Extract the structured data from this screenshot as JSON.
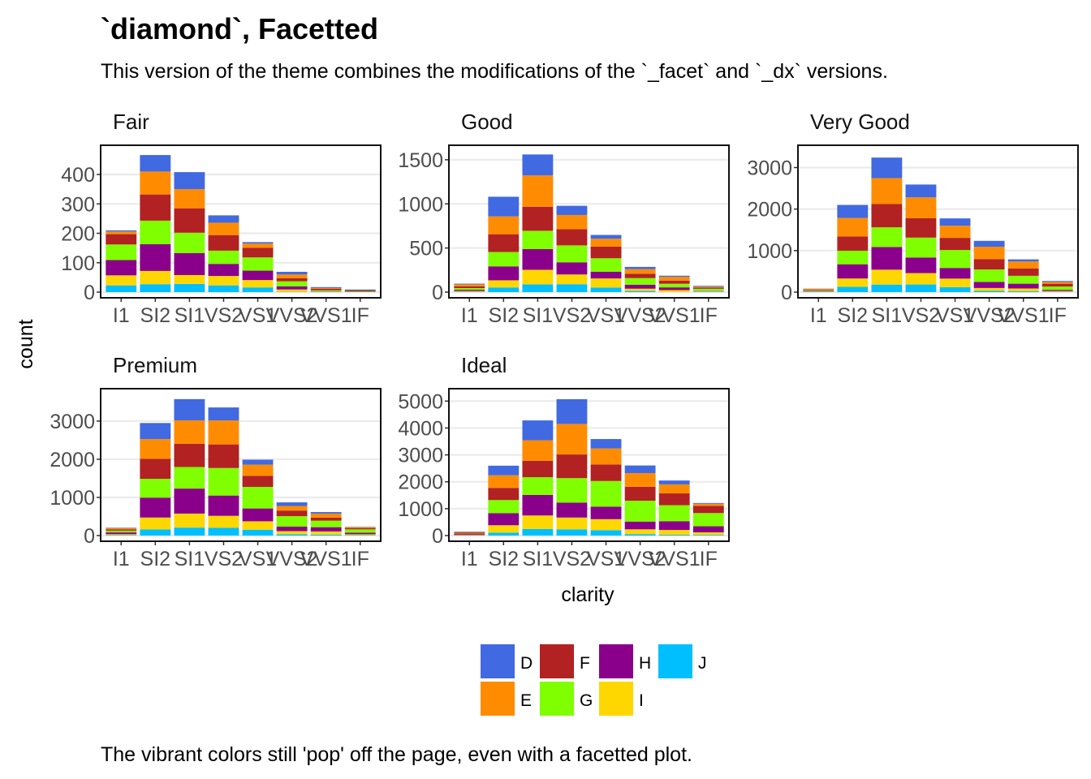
{
  "title": "`diamond`, Facetted",
  "subtitle": "This version of the theme combines the modifications of the `_facet` and `_dx` versions.",
  "caption": "The vibrant colors still 'pop' off the page, even with a facetted plot.",
  "colors": {
    "D": "#4169E1",
    "E": "#FF8C00",
    "F": "#B22222",
    "G": "#7FFF00",
    "H": "#8B008B",
    "I": "#FFD700",
    "J": "#00BFFF"
  },
  "chart_data": {
    "type": "bar",
    "stacked": true,
    "xlabel": "clarity",
    "ylabel": "count",
    "categories": [
      "I1",
      "SI2",
      "SI1",
      "VS2",
      "VS1",
      "VVS2",
      "VVS1",
      "IF"
    ],
    "legend": {
      "entries": [
        "D",
        "E",
        "F",
        "G",
        "H",
        "I",
        "J"
      ],
      "placement": "bottom"
    },
    "grid": true,
    "panels": [
      {
        "name": "Fair",
        "ylim": [
          0,
          480
        ],
        "yticks": [
          0,
          100,
          200,
          300,
          400
        ],
        "ytick_labels": [
          "0",
          "100",
          "200",
          "300",
          "400"
        ],
        "series": [
          {
            "name": "D",
            "values": [
              4,
              56,
              58,
              25,
              5,
              9,
              3,
              3
            ]
          },
          {
            "name": "E",
            "values": [
              9,
              78,
              65,
              42,
              14,
              13,
              3,
              0
            ]
          },
          {
            "name": "F",
            "values": [
              35,
              89,
              83,
              53,
              33,
              10,
              5,
              4
            ]
          },
          {
            "name": "G",
            "values": [
              53,
              80,
              69,
              45,
              45,
              17,
              3,
              2
            ]
          },
          {
            "name": "H",
            "values": [
              52,
              91,
              75,
              41,
              32,
              11,
              1,
              0
            ]
          },
          {
            "name": "I",
            "values": [
              34,
              45,
              30,
              32,
              25,
              8,
              1,
              0
            ]
          },
          {
            "name": "J",
            "values": [
              23,
              27,
              28,
              23,
              16,
              1,
              1,
              0
            ]
          }
        ]
      },
      {
        "name": "Good",
        "ylim": [
          0,
          1600
        ],
        "yticks": [
          0,
          500,
          1000,
          1500
        ],
        "ytick_labels": [
          "0",
          "500",
          "1000",
          "1500"
        ],
        "series": [
          {
            "name": "D",
            "values": [
              8,
              223,
              237,
              104,
              43,
              25,
              13,
              9
            ]
          },
          {
            "name": "E",
            "values": [
              23,
              202,
              355,
              160,
              89,
              52,
              43,
              9
            ]
          },
          {
            "name": "F",
            "values": [
              19,
              201,
              273,
              184,
              132,
              50,
              35,
              15
            ]
          },
          {
            "name": "G",
            "values": [
              19,
              163,
              207,
              192,
              152,
              75,
              41,
              22
            ]
          },
          {
            "name": "H",
            "values": [
              14,
              158,
              235,
              138,
              77,
              45,
              31,
              4
            ]
          },
          {
            "name": "I",
            "values": [
              9,
              81,
              165,
              110,
              103,
              26,
              22,
              6
            ]
          },
          {
            "name": "J",
            "values": [
              4,
              53,
              88,
              90,
              52,
              13,
              1,
              6
            ]
          }
        ]
      },
      {
        "name": "Very Good",
        "ylim": [
          0,
          3400
        ],
        "yticks": [
          0,
          1000,
          2000,
          3000
        ],
        "ytick_labels": [
          "0",
          "1000",
          "2000",
          "3000"
        ],
        "series": [
          {
            "name": "D",
            "values": [
              5,
              314,
              494,
              309,
              175,
              141,
              52,
              23
            ]
          },
          {
            "name": "E",
            "values": [
              22,
              445,
              626,
              503,
              293,
              298,
              170,
              43
            ]
          },
          {
            "name": "F",
            "values": [
              13,
              343,
              559,
              466,
              293,
              249,
              174,
              67
            ]
          },
          {
            "name": "G",
            "values": [
              16,
              327,
              474,
              479,
              432,
              302,
              190,
              79
            ]
          },
          {
            "name": "H",
            "values": [
              12,
              343,
              547,
              376,
              257,
              145,
              115,
              29
            ]
          },
          {
            "name": "I",
            "values": [
              8,
              200,
              358,
              274,
              205,
              71,
              69,
              19
            ]
          },
          {
            "name": "J",
            "values": [
              8,
              128,
              182,
              184,
              120,
              29,
              19,
              8
            ]
          }
        ]
      },
      {
        "name": "Premium",
        "ylim": [
          0,
          3700
        ],
        "yticks": [
          0,
          1000,
          2000,
          3000
        ],
        "ytick_labels": [
          "0",
          "1000",
          "2000",
          "3000"
        ],
        "series": [
          {
            "name": "D",
            "values": [
              12,
              421,
              556,
              339,
              131,
              94,
              40,
              10
            ]
          },
          {
            "name": "E",
            "values": [
              30,
              519,
              614,
              629,
              292,
              121,
              105,
              27
            ]
          },
          {
            "name": "F",
            "values": [
              34,
              523,
              608,
              619,
              290,
              146,
              80,
              31
            ]
          },
          {
            "name": "G",
            "values": [
              46,
              492,
              566,
              721,
              566,
              275,
              171,
              87
            ]
          },
          {
            "name": "H",
            "values": [
              46,
              521,
              655,
              532,
              336,
              118,
              112,
              40
            ]
          },
          {
            "name": "I",
            "values": [
              24,
              312,
              367,
              315,
              221,
              82,
              84,
              23
            ]
          },
          {
            "name": "J",
            "values": [
              13,
              161,
              209,
              202,
              153,
              34,
              24,
              12
            ]
          }
        ]
      },
      {
        "name": "Ideal",
        "ylim": [
          0,
          5250
        ],
        "yticks": [
          0,
          1000,
          2000,
          3000,
          4000,
          5000
        ],
        "ytick_labels": [
          "0",
          "1000",
          "2000",
          "3000",
          "4000",
          "5000"
        ],
        "series": [
          {
            "name": "D",
            "values": [
              13,
              356,
              738,
              920,
              351,
              284,
              144,
              28
            ]
          },
          {
            "name": "E",
            "values": [
              18,
              469,
              766,
              1136,
              593,
              507,
              335,
              79
            ]
          },
          {
            "name": "F",
            "values": [
              42,
              453,
              608,
              879,
              616,
              520,
              440,
              268
            ]
          },
          {
            "name": "G",
            "values": [
              16,
              486,
              660,
              910,
              953,
              774,
              594,
              491
            ]
          },
          {
            "name": "H",
            "values": [
              38,
              450,
              763,
              556,
              467,
              289,
              326,
              226
            ]
          },
          {
            "name": "I",
            "values": [
              17,
              274,
              504,
              438,
              408,
              178,
              179,
              95
            ]
          },
          {
            "name": "J",
            "values": [
              2,
              110,
              243,
              232,
              201,
              54,
              29,
              25
            ]
          }
        ]
      }
    ]
  }
}
